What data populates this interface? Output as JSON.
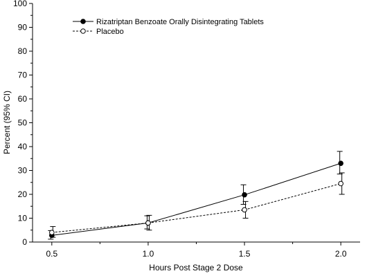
{
  "chart_data": {
    "type": "line",
    "title": "",
    "xlabel": "Hours Post Stage 2 Dose",
    "ylabel": "Percent (95% CI)",
    "x": [
      0.5,
      1.0,
      1.5,
      2.0
    ],
    "x_tick_labels": [
      "0.5",
      "1.0",
      "1.5",
      "2.0"
    ],
    "xlim": [
      0.4,
      2.1
    ],
    "ylim": [
      0,
      100
    ],
    "y_ticks": [
      0,
      10,
      20,
      30,
      40,
      50,
      60,
      70,
      80,
      90,
      100
    ],
    "grid": false,
    "legend_position": "top-left",
    "series": [
      {
        "name": "Rizatriptan Benzoate Orally Disintegrating Tablets",
        "marker": "filled-circle",
        "line_style": "solid",
        "values": [
          2.8,
          8.0,
          19.8,
          33.0
        ],
        "ci_low": [
          1.2,
          5.5,
          15.8,
          28.5
        ],
        "ci_high": [
          4.8,
          11.0,
          24.0,
          38.0
        ]
      },
      {
        "name": "Placebo",
        "marker": "open-circle",
        "line_style": "dashed",
        "values": [
          4.0,
          8.0,
          13.5,
          24.5
        ],
        "ci_low": [
          2.0,
          5.0,
          10.0,
          20.0
        ],
        "ci_high": [
          6.5,
          11.2,
          17.0,
          29.0
        ]
      }
    ],
    "colors": {
      "line": "#000000",
      "background": "#ffffff"
    }
  }
}
